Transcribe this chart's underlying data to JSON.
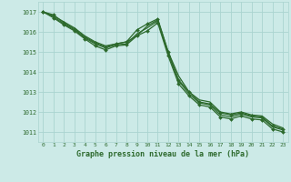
{
  "bg_color": "#cceae7",
  "grid_color": "#aad4d0",
  "line_color": "#2d6a2d",
  "marker_color": "#2d6a2d",
  "title": "Graphe pression niveau de la mer (hPa)",
  "xlim": [
    -0.5,
    23.5
  ],
  "ylim": [
    1010.5,
    1017.5
  ],
  "yticks": [
    1011,
    1012,
    1013,
    1014,
    1015,
    1016,
    1017
  ],
  "xticks": [
    0,
    1,
    2,
    3,
    4,
    5,
    6,
    7,
    8,
    9,
    10,
    11,
    12,
    13,
    14,
    15,
    16,
    17,
    18,
    19,
    20,
    21,
    22,
    23
  ],
  "series": [
    {
      "x": [
        0,
        1,
        2,
        3,
        4,
        5,
        6,
        7,
        8,
        9,
        10,
        11,
        12,
        13,
        14,
        15,
        16,
        17,
        18,
        19,
        20,
        21,
        22,
        23
      ],
      "y": [
        1017.0,
        1016.8,
        1016.5,
        1016.2,
        1015.8,
        1015.5,
        1015.3,
        1015.4,
        1015.5,
        1015.8,
        1016.3,
        1016.6,
        1015.0,
        1013.8,
        1013.0,
        1012.6,
        1012.5,
        1012.0,
        1011.9,
        1012.0,
        1011.85,
        1011.8,
        1011.4,
        1011.2
      ],
      "marker": false,
      "lw": 0.9
    },
    {
      "x": [
        0,
        1,
        2,
        3,
        4,
        5,
        6,
        7,
        8,
        9,
        10,
        11,
        12,
        13,
        14,
        15,
        16,
        17,
        18,
        19,
        20,
        21,
        22,
        23
      ],
      "y": [
        1017.0,
        1016.85,
        1016.45,
        1016.15,
        1015.75,
        1015.45,
        1015.25,
        1015.4,
        1015.5,
        1016.1,
        1016.4,
        1016.65,
        1015.0,
        1013.6,
        1013.0,
        1012.5,
        1012.4,
        1011.95,
        1011.85,
        1011.95,
        1011.8,
        1011.75,
        1011.3,
        1011.15
      ],
      "marker": true,
      "lw": 0.9
    },
    {
      "x": [
        0,
        1,
        2,
        3,
        4,
        5,
        6,
        7,
        8,
        9,
        10,
        11,
        12,
        13,
        14,
        15,
        16,
        17,
        18,
        19,
        20,
        21,
        22,
        23
      ],
      "y": [
        1017.0,
        1016.75,
        1016.4,
        1016.1,
        1015.7,
        1015.4,
        1015.2,
        1015.35,
        1015.4,
        1015.9,
        1016.2,
        1016.55,
        1014.9,
        1013.55,
        1012.9,
        1012.45,
        1012.35,
        1011.85,
        1011.75,
        1011.9,
        1011.75,
        1011.7,
        1011.25,
        1011.1
      ],
      "marker": false,
      "lw": 0.9
    },
    {
      "x": [
        0,
        1,
        2,
        3,
        4,
        5,
        6,
        7,
        8,
        9,
        10,
        11,
        12,
        13,
        14,
        15,
        16,
        17,
        18,
        19,
        20,
        21,
        22,
        23
      ],
      "y": [
        1017.0,
        1016.7,
        1016.35,
        1016.05,
        1015.65,
        1015.3,
        1015.1,
        1015.3,
        1015.35,
        1015.8,
        1016.05,
        1016.45,
        1014.8,
        1013.4,
        1012.8,
        1012.35,
        1012.25,
        1011.75,
        1011.65,
        1011.8,
        1011.65,
        1011.6,
        1011.15,
        1011.0
      ],
      "marker": true,
      "lw": 0.9
    }
  ]
}
